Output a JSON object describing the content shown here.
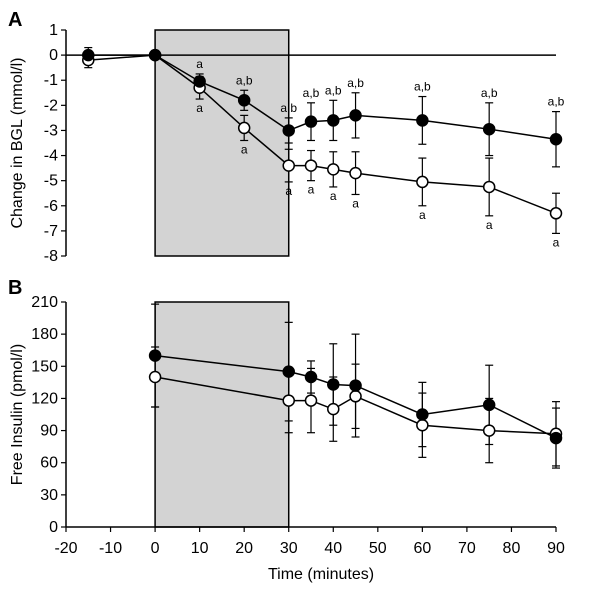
{
  "chart_data": [
    {
      "panel": "A",
      "type": "line",
      "ylabel": "Change in BGL (mmol/l)",
      "xlabel": "",
      "xlim": [
        -20,
        90
      ],
      "ylim": [
        -8,
        1
      ],
      "yticks": [
        1,
        0,
        -1,
        -2,
        -3,
        -4,
        -5,
        -6,
        -7,
        -8
      ],
      "shaded_region": [
        0,
        30
      ],
      "series": [
        {
          "marker": "filled",
          "x": [
            -15,
            0,
            10,
            20,
            30,
            35,
            40,
            45,
            60,
            75,
            90
          ],
          "values": [
            0,
            0,
            -1.05,
            -1.8,
            -3.0,
            -2.65,
            -2.6,
            -2.4,
            -2.6,
            -2.95,
            -3.35
          ],
          "err": [
            0.3,
            0.1,
            0.3,
            0.4,
            0.5,
            0.75,
            0.8,
            0.9,
            0.95,
            1.05,
            1.1
          ]
        },
        {
          "marker": "open",
          "x": [
            -15,
            0,
            10,
            20,
            30,
            35,
            40,
            45,
            60,
            75,
            90
          ],
          "values": [
            -0.2,
            0,
            -1.3,
            -2.9,
            -4.4,
            -4.4,
            -4.55,
            -4.7,
            -5.05,
            -5.25,
            -6.3
          ],
          "err": [
            0.3,
            0.1,
            0.45,
            0.5,
            0.65,
            0.6,
            0.7,
            0.85,
            0.95,
            1.15,
            0.8
          ]
        }
      ],
      "annotations_above": [
        {
          "x": 10,
          "text": "a"
        },
        {
          "x": 20,
          "text": "a,b"
        },
        {
          "x": 30,
          "text": "a,b"
        },
        {
          "x": 35,
          "text": "a,b"
        },
        {
          "x": 40,
          "text": "a,b"
        },
        {
          "x": 45,
          "text": "a,b"
        },
        {
          "x": 60,
          "text": "a,b"
        },
        {
          "x": 75,
          "text": "a,b"
        },
        {
          "x": 90,
          "text": "a,b"
        }
      ],
      "annotations_below": [
        {
          "x": 10,
          "text": "a"
        },
        {
          "x": 20,
          "text": "a"
        },
        {
          "x": 30,
          "text": "a"
        },
        {
          "x": 35,
          "text": "a"
        },
        {
          "x": 40,
          "text": "a"
        },
        {
          "x": 45,
          "text": "a"
        },
        {
          "x": 60,
          "text": "a"
        },
        {
          "x": 75,
          "text": "a"
        },
        {
          "x": 90,
          "text": "a"
        }
      ]
    },
    {
      "panel": "B",
      "type": "line",
      "ylabel": "Free Insulin (pmol/l)",
      "xlabel": "Time (minutes)",
      "xlim": [
        -20,
        90
      ],
      "ylim": [
        0,
        210
      ],
      "yticks": [
        0,
        30,
        60,
        90,
        120,
        150,
        180,
        210
      ],
      "xticks": [
        -20,
        -10,
        0,
        10,
        20,
        30,
        40,
        50,
        60,
        70,
        80,
        90
      ],
      "shaded_region": [
        0,
        30
      ],
      "series": [
        {
          "marker": "filled",
          "x": [
            0,
            30,
            35,
            40,
            45,
            60,
            75,
            90
          ],
          "values": [
            160,
            145,
            140,
            133,
            132,
            105,
            114,
            83
          ],
          "err": [
            48,
            46,
            15,
            38,
            48,
            30,
            37,
            28
          ]
        },
        {
          "marker": "open",
          "x": [
            0,
            30,
            35,
            40,
            45,
            60,
            75,
            90
          ],
          "values": [
            140,
            118,
            118,
            110,
            122,
            95,
            90,
            87
          ],
          "err": [
            28,
            30,
            30,
            30,
            30,
            30,
            30,
            30
          ]
        }
      ]
    }
  ]
}
